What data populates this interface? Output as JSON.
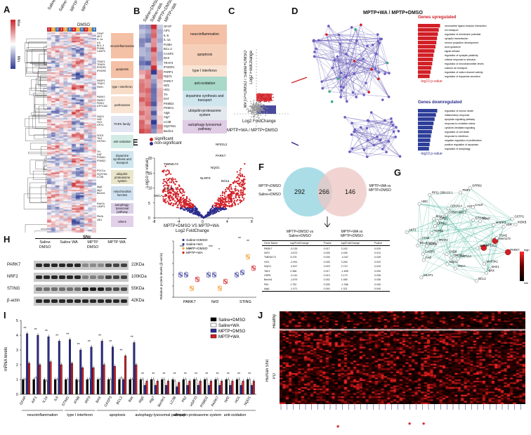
{
  "panel_labels": [
    "A",
    "B",
    "C",
    "D",
    "E",
    "F",
    "G",
    "H",
    "I",
    "J"
  ],
  "panelA": {
    "column_labels": [
      "Saline",
      "Saline+WA",
      "MPTP",
      "MPTP+WA",
      "DMSO"
    ],
    "scale": {
      "max": "Max",
      "min": "Min"
    },
    "sample_nums": [
      "1",
      "2",
      "3",
      "1",
      "2",
      "3",
      "1",
      "2",
      "3",
      "1",
      "2",
      "3"
    ],
    "categories": [
      {
        "label": "neuroinflammation",
        "color": "#f4c0a6",
        "genes": [
          "GFAP",
          "AIF1",
          "IL-1a",
          "IL6",
          "BCL-2",
          "PUMA",
          "CASP3"
        ]
      },
      {
        "label": "apoptosis",
        "color": "#f4c0a6",
        "genes": [
          "TRAF3",
          "TRAF6",
          "IFNGR1",
          "IFNGR2"
        ]
      },
      {
        "label": "type I interferon",
        "color": "#f8dcc6",
        "genes": [
          "PARP1",
          "TRAF2",
          "PAR1"
        ]
      },
      {
        "label": "parthanatos",
        "color": "#f9e4d4",
        "genes": [
          "PARK2",
          "PARK7",
          "PINK1",
          "ATP13A2"
        ]
      },
      {
        "label": "PARK family",
        "color": "#e1e6f2",
        "genes": [
          "NQO1",
          "Nrf2",
          "HO1",
          "GPX1"
        ]
      },
      {
        "label": "anti-oxidation",
        "color": "#d2ece5",
        "genes": [
          "SOD1",
          "Tfe3",
          "GSTM1"
        ]
      },
      {
        "label": "dopamine synthesis and transport",
        "color": "#cfe6ef",
        "genes": [
          "TH",
          "DAT",
          "PSMA1",
          "PSMD2"
        ]
      },
      {
        "label": "ubiquitin-proteasome system",
        "color": "#eae6cc",
        "genes": [
          "PGC1a",
          "SQSTM1",
          "LC3B"
        ]
      },
      {
        "label": "mitochondrial function",
        "color": "#cfe1f0",
        "genes": [
          "Atg5",
          "Atg7",
          "Beclin1"
        ]
      },
      {
        "label": "autophagy-lysosomal pathway",
        "color": "#dccfe8",
        "genes": [
          "Rab7a",
          "LAMP1"
        ]
      },
      {
        "label": "others",
        "color": "#e2d1e9",
        "genes": [
          "Ptk2b",
          "Ulk1"
        ]
      }
    ]
  },
  "panelB": {
    "column_labels": [
      "Saline+DMSO",
      "Saline+WA",
      "MPTP+DMSO",
      "MPTP+WA"
    ],
    "genes": [
      "GFAP",
      "AIF1",
      "IL-6",
      "IL-1a",
      "PUMA",
      "BCL-2",
      "CASP3",
      "BAX",
      "TRAF3",
      "IFNGR1",
      "PARP1",
      "NQO1",
      "PARK7",
      "Nrf2",
      "HO1",
      "TH",
      "DAT",
      "PSMD2",
      "PSMA1",
      "Atg5",
      "Atg7",
      "LC3B",
      "SQSTM1",
      "Beclin1"
    ],
    "categories": [
      {
        "label": "neuroinflammation",
        "color": "#f4c0a6"
      },
      {
        "label": "apoptosis",
        "color": "#f6cfb8"
      },
      {
        "label": "type I interferon",
        "color": "#f9e4d4"
      },
      {
        "label": "anti-oxidation",
        "color": "#a9d9c9"
      },
      {
        "label": "dopamine synthesis and transport",
        "color": "#cfe6ef"
      },
      {
        "label": "ubiquitin-proteasome system",
        "color": "#e2e8ee"
      },
      {
        "label": "autophagy-lysosomal pathway",
        "color": "#e0cce5"
      }
    ]
  },
  "panelC": {
    "xlabel": "Log2 FoldChange",
    "ylabel": "Log2 FoldChange",
    "label_top": "MPTP+DMSO / Saline+DMSO",
    "label_bottom": "MPTP+WA / MPTP+DMSO"
  },
  "panelD": {
    "title": "MPTP+WA / MPTP+DMSO",
    "up_title": "Genes upregulated",
    "down_title": "Genes downregulated",
    "xlabel": "-log10 p-value",
    "up_terms": [
      "neuroactive ligand-receptor interaction",
      "ion transport",
      "regulation of membrane potential",
      "synaptic transmission",
      "neuron projection development",
      "axon guidance",
      "signal release",
      "regulation of synaptic plasticity",
      "cellular response to stimulus",
      "regulation of neurotransmitter levels",
      "calcium ion transport",
      "regulation of cation channel activity",
      "regulation of dopamine secretion"
    ],
    "down_terms": [
      "regulation of neuron death",
      "inflammatory response",
      "apoptotic signaling pathway",
      "response to oxidative stress",
      "cytokine-mediated signaling",
      "regulation of cell death",
      "response to interferon",
      "negative regulation of proliferation",
      "positive regulation of apoptosis",
      "regulation of autophagy",
      "regulation of protein catabolic process",
      "response to wounding"
    ],
    "up_values": [
      10.2,
      9.6,
      9.2,
      8.8,
      8.5,
      8.1,
      7.6,
      7.2,
      6.9,
      6.6,
      6.2,
      5.8,
      5.4
    ],
    "down_values": [
      8.9,
      8.3,
      7.7,
      7.2,
      6.8,
      6.4,
      6.0,
      5.7,
      5.4,
      5.1,
      4.8,
      4.5
    ]
  },
  "panelE": {
    "title": "MPTP+DMSO VS MPTP+WA",
    "xlabel": "Log2 FoldChange",
    "ylabel": "-Log10 (p value)",
    "legend": [
      "significant",
      "non-significant"
    ],
    "gene_labels": [
      "NFE2L2",
      "PARK7",
      "TMEM173",
      "NQO1",
      "Bcl1a",
      "GFAP",
      "SNCA",
      "NLRP3"
    ],
    "x_ticks": [
      "-8",
      "-4",
      "0",
      "4",
      "8"
    ],
    "y_ticks": [
      "0",
      "5",
      "10",
      "15",
      "20"
    ]
  },
  "panelF": {
    "left_set": "MPTP+DMSO vs Saline+DMSO",
    "right_set": "MPTP+WA vs MPTP+DMSO",
    "left_only": "292",
    "overlap": "266",
    "right_only": "146",
    "table_header_left": "MPTP+DMSO vs Saline+DMSO",
    "table_header_right": "MPTP+WA vs MPTP+DMSO",
    "columns": [
      "Gene Name",
      "log2FoldChange",
      "Pvalue",
      "log2FoldChange",
      "Pvalue"
    ],
    "rows": [
      [
        "PARK7",
        "-5.135",
        "0.017",
        "3.242",
        "0.029"
      ],
      [
        "NrF2",
        "-3.672",
        "0.026",
        "4.426",
        "0.012"
      ],
      [
        "TMEM173",
        "3.475",
        "0.039",
        "-3.347",
        "0.035"
      ],
      [
        "HO1",
        "-2.991",
        "0.026",
        "3.263",
        "0.023"
      ],
      [
        "NQO1",
        "-2.817",
        "0.023",
        "2.713",
        "0.043"
      ],
      [
        "TAK1",
        "2.368",
        "0.017",
        "-1.695",
        "0.030"
      ],
      [
        "HSP5",
        "-3.141",
        "0.013",
        "2.173",
        "0.035"
      ],
      [
        "Beclin1",
        "-1.879",
        "0.042",
        "1.465",
        "0.036"
      ],
      [
        "P62",
        "1.752",
        "0.026",
        "-1.356",
        "0.040"
      ],
      [
        "Atg5",
        "-1.471",
        "0.044",
        "1.321",
        "0.040"
      ]
    ]
  },
  "panelG": {
    "genes": [
      "Tmem173",
      "NFE2L2",
      "PARK7",
      "MAPK",
      "MAP3K1",
      "BAK1",
      "BAX",
      "BCL2",
      "SNCA",
      "HSPA1A",
      "NQO1",
      "HMOX1",
      "KEAP1",
      "CHD8",
      "FAS",
      "CASP3",
      "TRAF2",
      "PPARGC1A",
      "SOD2",
      "ATG5",
      "AKT1",
      "TGFB2",
      "LRRK2",
      "CYBB",
      "PINK1",
      "UBC",
      "RP11-208A19.1",
      "CH507-9B2.3",
      "CDKN1A",
      "PMF1",
      "AOX1",
      "GPR82",
      "CALR",
      "RBM7",
      "EPHA2",
      "MAPK3",
      "IKBKB",
      "GSTP1",
      "VDR",
      "TGM2"
    ],
    "scale_max": "high",
    "scale_min": "low"
  },
  "panelH": {
    "region": "SNc",
    "lanes": [
      "Saline DMSO",
      "Saline WA",
      "MPTP DMSO",
      "MPTP WA"
    ],
    "bands": [
      {
        "name": "PARK7",
        "kda": "22KDa"
      },
      {
        "name": "NRF2",
        "kda": "100KDa"
      },
      {
        "name": "STING",
        "kda": "55KDa"
      },
      {
        "name": "β-actin",
        "kda": "42KDa"
      }
    ],
    "chart": {
      "ylabel": "Relative protein levels (β-actin)",
      "legend": [
        "Saline+DMSO",
        "Saline+WA",
        "MPTP+DMSO",
        "MPTP+WA"
      ],
      "groups": [
        "PARK7",
        "Nrf2",
        "STING"
      ],
      "sig": [
        "***",
        "**",
        "***",
        "*",
        "**",
        "**"
      ]
    }
  },
  "panelI": {
    "ylabel": "mRNA levels",
    "legend": [
      "Saline+DMSO",
      "Saline+WA",
      "MPTP+DMSO",
      "MPTP+WA"
    ],
    "colors": [
      "#000000",
      "#ffffff",
      "#2c2c96",
      "#d21f26"
    ],
    "genes": [
      "GFAP",
      "AIF1",
      "IL1a",
      "IL6",
      "STING",
      "IFNB",
      "IRF3",
      "BAX",
      "CASP3",
      "BCL2",
      "Bax",
      "Atg5",
      "Atg7",
      "Beclin1",
      "LC3B",
      "P62",
      "HSP70",
      "PSMD2",
      "PARK7",
      "Nrf2",
      "HO1",
      "NQO1"
    ],
    "groups": [
      {
        "label": "neuroinflammation",
        "span": [
          0,
          4
        ]
      },
      {
        "label": "type I interferon",
        "span": [
          4,
          7
        ]
      },
      {
        "label": "apoptosis",
        "span": [
          7,
          11
        ]
      },
      {
        "label": "autophagy-lysosomal pathway",
        "span": [
          11,
          15
        ]
      },
      {
        "label": "ubiquitin-proteasome system",
        "span": [
          15,
          18
        ]
      },
      {
        "label": "anti-oxidation",
        "span": [
          18,
          22
        ]
      }
    ]
  },
  "panelJ": {
    "row_group_top": "Healthy",
    "row_group_bottom": "PD",
    "side_label": "Human SNc",
    "scale_high": "high",
    "scale_low": "low"
  },
  "chart_data": [
    {
      "type": "bar",
      "title": "",
      "ylabel": "mRNA levels",
      "categories": [
        "GFAP",
        "AIF1",
        "IL1a",
        "IL6",
        "STING",
        "IFNB",
        "IRF3",
        "BAX",
        "CASP3",
        "BCL2",
        "Bax",
        "Atg5",
        "Atg7",
        "Beclin1",
        "LC3B",
        "P62",
        "HSP70",
        "PSMD2",
        "PARK7",
        "Nrf2",
        "HO1",
        "NQO1"
      ],
      "ylim": [
        0,
        5
      ],
      "series": [
        {
          "name": "Saline+DMSO",
          "values": [
            1,
            1,
            1,
            1,
            1,
            1,
            1,
            1,
            1,
            1,
            1,
            1,
            1,
            1,
            1,
            1,
            1,
            1,
            1,
            1,
            1,
            1
          ]
        },
        {
          "name": "Saline+WA",
          "values": [
            1.0,
            1.1,
            0.9,
            1.0,
            1.0,
            0.9,
            1.0,
            1.0,
            1.0,
            1.1,
            1.0,
            1.0,
            1.0,
            1.0,
            0.9,
            1.0,
            1.0,
            1.0,
            1.0,
            1.0,
            1.0,
            1.0
          ]
        },
        {
          "name": "MPTP+DMSO",
          "values": [
            4.1,
            4.0,
            3.9,
            3.6,
            3.7,
            3.0,
            3.2,
            3.6,
            3.2,
            1.0,
            3.5,
            0.6,
            0.6,
            0.6,
            0.5,
            0.6,
            0.6,
            0.6,
            0.6,
            0.6,
            0.6,
            0.6
          ]
        },
        {
          "name": "MPTP+WA",
          "values": [
            2.1,
            2.0,
            2.2,
            2.0,
            2.1,
            1.8,
            1.8,
            2.0,
            1.9,
            2.6,
            2.0,
            0.9,
            0.9,
            0.9,
            0.8,
            0.9,
            0.9,
            0.9,
            0.9,
            0.9,
            0.9,
            0.9
          ]
        }
      ]
    },
    {
      "type": "bar",
      "title": "",
      "ylabel": "Relative protein levels (β-actin)",
      "categories": [
        "PARK7",
        "Nrf2",
        "STING"
      ],
      "ylim": [
        0,
        2.5
      ],
      "series": [
        {
          "name": "Saline+DMSO",
          "values": [
            1.0,
            1.0,
            1.0
          ]
        },
        {
          "name": "Saline+WA",
          "values": [
            1.0,
            1.0,
            1.1
          ]
        },
        {
          "name": "MPTP+DMSO",
          "values": [
            0.4,
            0.4,
            1.8
          ]
        },
        {
          "name": "MPTP+WA",
          "values": [
            0.8,
            0.7,
            1.3
          ]
        }
      ]
    }
  ]
}
